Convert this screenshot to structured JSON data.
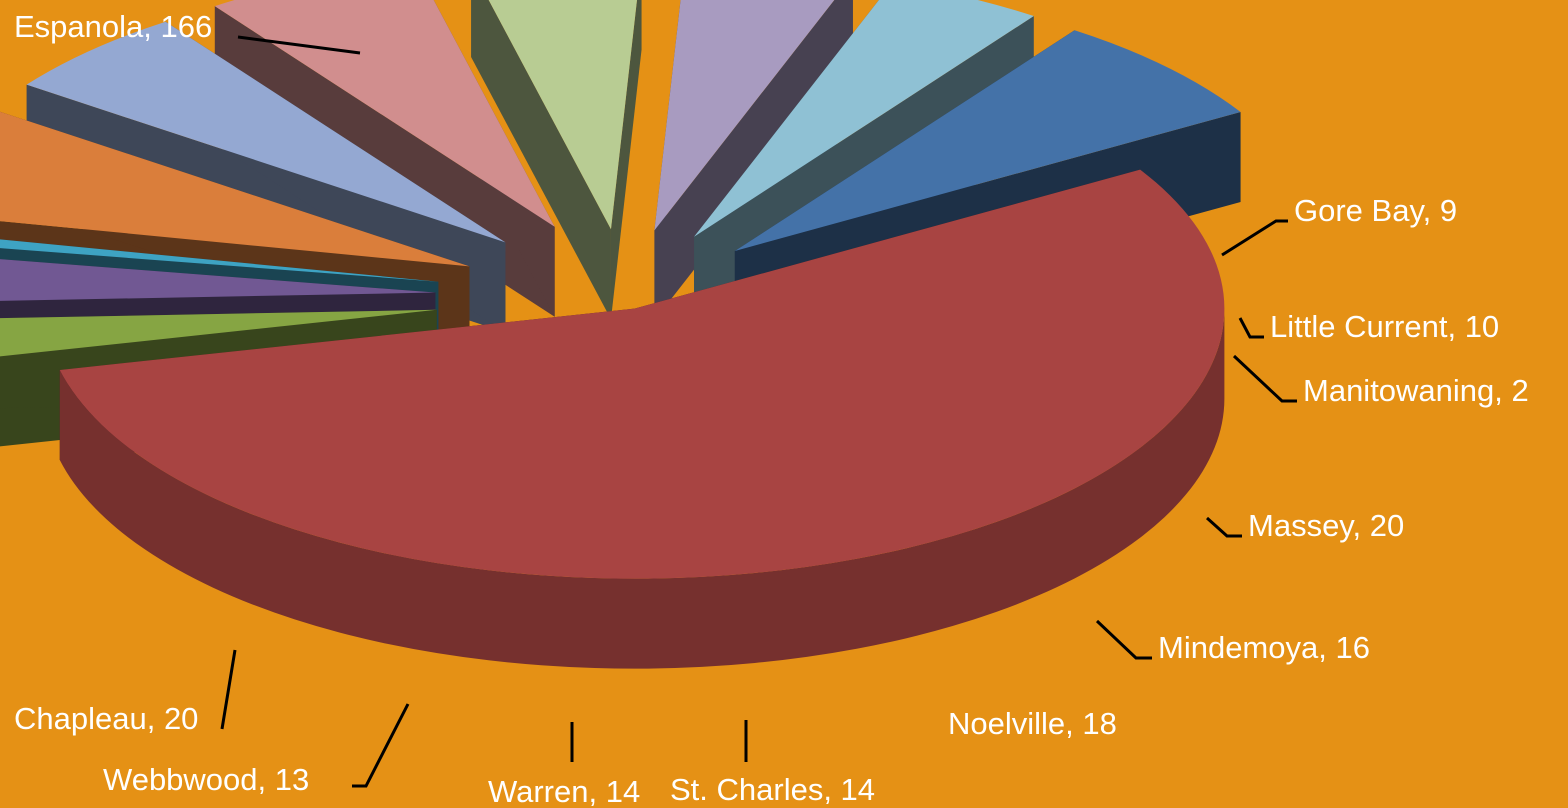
{
  "chart_data": {
    "type": "pie",
    "style": "3d-exploded",
    "title": "",
    "legend": "none",
    "background_color": "#E59115",
    "label_color": "#FFFFFF",
    "slices": [
      {
        "label": "Espanola",
        "value": 166,
        "color": "#A84442",
        "text": "Espanola, 166"
      },
      {
        "label": "Gore Bay",
        "value": 9,
        "color": "#86A543",
        "text": "Gore Bay, 9"
      },
      {
        "label": "Little Current",
        "value": 10,
        "color": "#715893",
        "text": "Little Current, 10"
      },
      {
        "label": "Manitowaning",
        "value": 2,
        "color": "#3EA3C3",
        "text": "Manitowaning, 2"
      },
      {
        "label": "Massey",
        "value": 20,
        "color": "#DA7E3B",
        "text": "Massey, 20"
      },
      {
        "label": "Mindemoya",
        "value": 16,
        "color": "#94A8D2",
        "text": "Mindemoya, 16"
      },
      {
        "label": "Noelville",
        "value": 18,
        "color": "#D18E8E",
        "text": "Noelville, 18"
      },
      {
        "label": "St. Charles",
        "value": 14,
        "color": "#B8CC93",
        "text": "St. Charles, 14"
      },
      {
        "label": "Warren",
        "value": 14,
        "color": "#A89BC0",
        "text": "Warren, 14"
      },
      {
        "label": "Webbwood",
        "value": 13,
        "color": "#8FC1D4",
        "text": "Webbwood, 13"
      },
      {
        "label": "Chapleau",
        "value": 20,
        "color": "#4472A8",
        "text": "Chapleau, 20"
      }
    ]
  }
}
